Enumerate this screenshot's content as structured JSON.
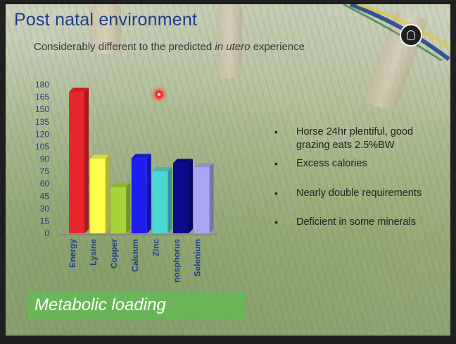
{
  "title": "Post natal environment",
  "subtitle": {
    "before": "Considerably different to the predicted ",
    "emphasis": "in utero",
    "after": " experience"
  },
  "bullets": [
    "Horse 24hr plentiful, good grazing eats 2.5%BW",
    "Excess calories",
    "Nearly double requirements",
    "Deficient in some minerals"
  ],
  "bullet_glyph": "•",
  "banner": "Metabolic loading",
  "chart_data": {
    "type": "bar",
    "categories": [
      "Energy",
      "Lysine",
      "Copper",
      "Calcium",
      "Zinc",
      "Phosphorus",
      "Selenium"
    ],
    "visible_labels": [
      "Energy",
      "Lysine",
      "Copper",
      "Calcium",
      "Zinc",
      "nosphorus",
      "Selenium"
    ],
    "values": [
      171,
      90,
      56,
      91,
      75,
      85,
      80
    ],
    "colors": [
      "#e8262b",
      "#ffff4d",
      "#a6d43a",
      "#1d1df0",
      "#4cd6d4",
      "#0a0a8a",
      "#a8a8f0"
    ],
    "ylim": [
      0,
      180
    ],
    "yticks": [
      0,
      15,
      30,
      45,
      60,
      75,
      90,
      105,
      120,
      135,
      150,
      165,
      180
    ],
    "grid": false,
    "style": "3d-bars"
  }
}
